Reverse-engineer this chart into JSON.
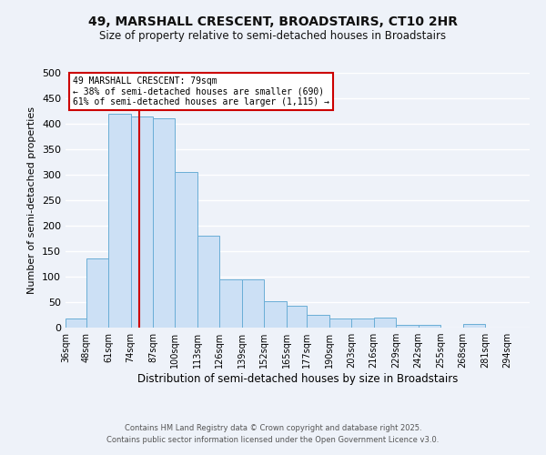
{
  "title": "49, MARSHALL CRESCENT, BROADSTAIRS, CT10 2HR",
  "subtitle": "Size of property relative to semi-detached houses in Broadstairs",
  "xlabel": "Distribution of semi-detached houses by size in Broadstairs",
  "ylabel": "Number of semi-detached properties",
  "bin_labels": [
    "36sqm",
    "48sqm",
    "61sqm",
    "74sqm",
    "87sqm",
    "100sqm",
    "113sqm",
    "126sqm",
    "139sqm",
    "152sqm",
    "165sqm",
    "177sqm",
    "190sqm",
    "203sqm",
    "216sqm",
    "229sqm",
    "242sqm",
    "255sqm",
    "268sqm",
    "281sqm",
    "294sqm"
  ],
  "bar_values": [
    18,
    135,
    420,
    415,
    410,
    305,
    180,
    95,
    95,
    52,
    42,
    25,
    18,
    18,
    20,
    5,
    5,
    0,
    7,
    0,
    0
  ],
  "bar_color": "#cce0f5",
  "bar_edge_color": "#6aaed6",
  "vline_x": 79,
  "bin_edges": [
    36,
    48,
    61,
    74,
    87,
    100,
    113,
    126,
    139,
    152,
    165,
    177,
    190,
    203,
    216,
    229,
    242,
    255,
    268,
    281,
    294,
    307
  ],
  "annotation_title": "49 MARSHALL CRESCENT: 79sqm",
  "annotation_line1": "← 38% of semi-detached houses are smaller (690)",
  "annotation_line2": "61% of semi-detached houses are larger (1,115) →",
  "annotation_box_color": "#ffffff",
  "annotation_box_edge": "#cc0000",
  "ylim": [
    0,
    500
  ],
  "yticks": [
    0,
    50,
    100,
    150,
    200,
    250,
    300,
    350,
    400,
    450,
    500
  ],
  "footer1": "Contains HM Land Registry data © Crown copyright and database right 2025.",
  "footer2": "Contains public sector information licensed under the Open Government Licence v3.0.",
  "bg_color": "#eef2f9",
  "grid_color": "#ffffff",
  "title_fontsize": 10,
  "subtitle_fontsize": 8.5
}
